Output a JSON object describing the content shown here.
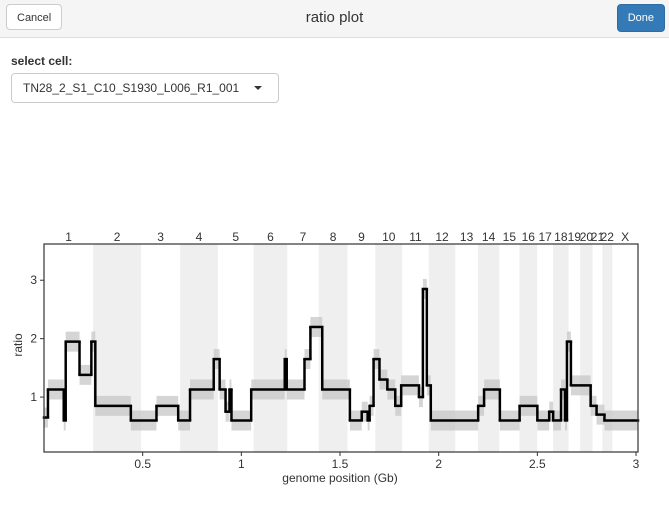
{
  "header": {
    "cancel": "Cancel",
    "title": "ratio plot",
    "done": "Done"
  },
  "select": {
    "label": "select cell:",
    "value": "TN28_2_S1_C10_S1930_L006_R1_001"
  },
  "chart_data": {
    "type": "segments",
    "x_label": "genome position (Gb)",
    "y_label": "ratio",
    "xlim": [
      0,
      3.01
    ],
    "ylim": [
      0.06,
      3.62
    ],
    "xticks": [
      0.5,
      1,
      1.5,
      2,
      2.5,
      3
    ],
    "yticks": [
      1,
      2,
      3
    ],
    "color": "#000000",
    "cloud_color": "#c8c8c8",
    "band_color": "#efefef",
    "chromosomes": [
      "1",
      "2",
      "3",
      "4",
      "5",
      "6",
      "7",
      "8",
      "9",
      "10",
      "11",
      "12",
      "13",
      "14",
      "15",
      "16",
      "17",
      "18",
      "19",
      "20",
      "21",
      "22",
      "X"
    ],
    "chrom_starts": [
      0,
      0.249,
      0.492,
      0.69,
      0.881,
      1.062,
      1.233,
      1.392,
      1.538,
      1.679,
      1.815,
      1.95,
      2.084,
      2.199,
      2.307,
      2.409,
      2.499,
      2.58,
      2.658,
      2.717,
      2.78,
      2.829,
      2.88
    ],
    "chrom_ends": [
      0.249,
      0.492,
      0.69,
      0.881,
      1.062,
      1.233,
      1.392,
      1.538,
      1.679,
      1.815,
      1.95,
      2.084,
      2.199,
      2.307,
      2.409,
      2.499,
      2.58,
      2.658,
      2.717,
      2.78,
      2.829,
      2.88,
      3.01
    ],
    "starts": [
      0,
      0.02,
      0.1,
      0.11,
      0.18,
      0.24,
      0.26,
      0.44,
      0.57,
      0.68,
      0.74,
      0.86,
      0.89,
      0.92,
      0.94,
      0.95,
      1.05,
      1.22,
      1.23,
      1.32,
      1.35,
      1.41,
      1.55,
      1.61,
      1.64,
      1.65,
      1.67,
      1.7,
      1.74,
      1.78,
      1.81,
      1.9,
      1.92,
      1.94,
      1.96,
      2.2,
      2.23,
      2.31,
      2.41,
      2.5,
      2.56,
      2.58,
      2.62,
      2.64,
      2.65,
      2.67,
      2.77,
      2.8,
      2.84
    ],
    "ends": [
      0.02,
      0.1,
      0.11,
      0.18,
      0.24,
      0.26,
      0.44,
      0.57,
      0.68,
      0.74,
      0.86,
      0.89,
      0.92,
      0.94,
      0.95,
      1.05,
      1.22,
      1.23,
      1.32,
      1.35,
      1.41,
      1.55,
      1.61,
      1.64,
      1.65,
      1.67,
      1.7,
      1.74,
      1.78,
      1.81,
      1.9,
      1.92,
      1.94,
      1.96,
      2.2,
      2.23,
      2.31,
      2.41,
      2.5,
      2.56,
      2.58,
      2.62,
      2.64,
      2.65,
      2.67,
      2.77,
      2.8,
      2.84,
      3.01
    ],
    "ratios": [
      0.65,
      1.13,
      0.6,
      1.95,
      1.38,
      1.95,
      0.85,
      0.6,
      0.85,
      0.6,
      1.13,
      1.65,
      1.13,
      0.75,
      1.13,
      0.6,
      1.13,
      1.65,
      1.13,
      1.65,
      2.2,
      1.13,
      0.6,
      0.75,
      0.6,
      0.85,
      1.65,
      1.3,
      1.13,
      0.85,
      1.2,
      1.0,
      2.85,
      1.2,
      0.6,
      0.85,
      1.13,
      0.6,
      0.85,
      0.6,
      0.75,
      0.6,
      1.13,
      0.6,
      1.95,
      1.2,
      0.85,
      0.7,
      0.6
    ]
  }
}
